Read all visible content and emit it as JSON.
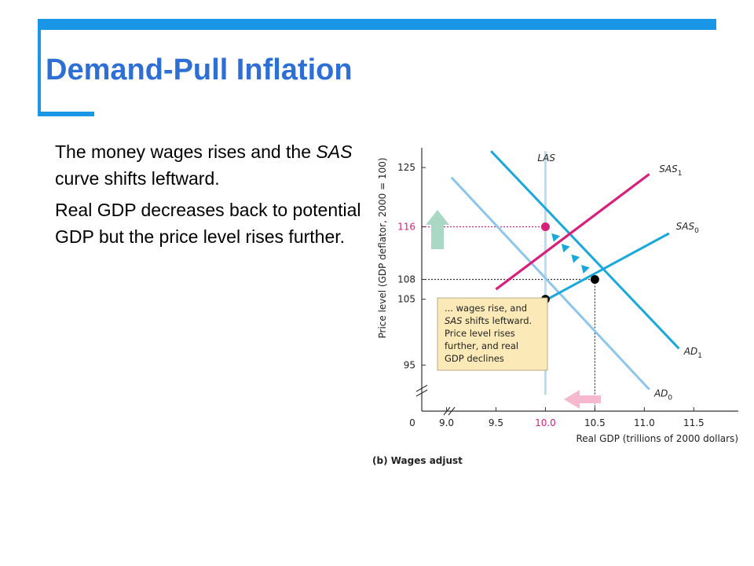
{
  "slide": {
    "title": "Demand-Pull Inflation",
    "paragraphs": [
      [
        {
          "text": "The money wages rises and the ",
          "italic": false
        },
        {
          "text": "SAS",
          "italic": true
        },
        {
          "text": " curve shifts leftward.",
          "italic": false
        }
      ],
      [
        {
          "text": "Real GDP decreases back to potential GDP but the price level rises further.",
          "italic": false
        }
      ]
    ]
  },
  "colors": {
    "accent_blue": "#1a96e6",
    "title_blue": "#2e6fd6",
    "sas1_magenta": "#d8207a",
    "sas0_cyan": "#19a8dc",
    "ad1_cyan": "#19a8dc",
    "ad0_lightblue": "#8dc6ea",
    "las_lightblue": "#b9def4",
    "highlight_magenta": "#d8207a",
    "up_arrow": "#a9d8c4",
    "left_arrow": "#f6b8cc",
    "note_fill": "#fbeab7",
    "note_border": "#b8a98a"
  },
  "chart_data": {
    "type": "line",
    "caption": "(b) Wages adjust",
    "xlabel": "Real GDP (trillions of 2000 dollars)",
    "ylabel": "Price level (GDP deflator, 2000 = 100)",
    "xlim": [
      8.75,
      11.95
    ],
    "ylim": [
      88,
      128
    ],
    "x_ticks": [
      9.0,
      9.5,
      10.0,
      10.5,
      11.0,
      11.5
    ],
    "x_tick_labels": [
      "9.0",
      "9.5",
      "10.0",
      "10.5",
      "11.0",
      "11.5"
    ],
    "y_ticks": [
      95,
      105,
      108,
      116,
      125
    ],
    "y_tick_labels": [
      "95",
      "105",
      "108",
      "116",
      "125"
    ],
    "origin_label": "0",
    "highlight": {
      "x_tick": "10.0",
      "y_tick": "116"
    },
    "series": [
      {
        "name": "LAS",
        "label_main": "LAS",
        "label_sub": "",
        "points": [
          [
            10.0,
            90.5
          ],
          [
            10.0,
            127.5
          ]
        ]
      },
      {
        "name": "SAS1",
        "label_main": "SAS",
        "label_sub": "1",
        "points": [
          [
            9.5,
            106.5
          ],
          [
            11.05,
            124.0
          ]
        ]
      },
      {
        "name": "SAS0",
        "label_main": "SAS",
        "label_sub": "0",
        "points": [
          [
            9.75,
            102.8
          ],
          [
            11.25,
            115.0
          ]
        ]
      },
      {
        "name": "AD1",
        "label_main": "AD",
        "label_sub": "1",
        "points": [
          [
            9.45,
            127.5
          ],
          [
            11.35,
            97.5
          ]
        ]
      },
      {
        "name": "AD0",
        "label_main": "AD",
        "label_sub": "0",
        "points": [
          [
            9.05,
            123.5
          ],
          [
            11.05,
            91.3
          ]
        ]
      }
    ],
    "equilibria": [
      {
        "x": 10.0,
        "y": 105,
        "kind": "initial"
      },
      {
        "x": 10.5,
        "y": 108,
        "kind": "demand-shifted"
      },
      {
        "x": 10.0,
        "y": 116,
        "kind": "new"
      }
    ],
    "arrowheads_along_ad1": [
      [
        10.1,
        114.4
      ],
      [
        10.2,
        112.8
      ],
      [
        10.3,
        111.2
      ],
      [
        10.4,
        109.6
      ]
    ],
    "annotation": {
      "lines": [
        [
          {
            "text": "... wages rise, and",
            "italic": false
          }
        ],
        [
          {
            "text": "SAS",
            "italic": true
          },
          {
            "text": " shifts leftward.",
            "italic": false
          }
        ],
        [
          {
            "text": "Price level rises",
            "italic": false
          }
        ],
        [
          {
            "text": "further, and real",
            "italic": false
          }
        ],
        [
          {
            "text": "GDP declines",
            "italic": false
          }
        ]
      ]
    }
  }
}
